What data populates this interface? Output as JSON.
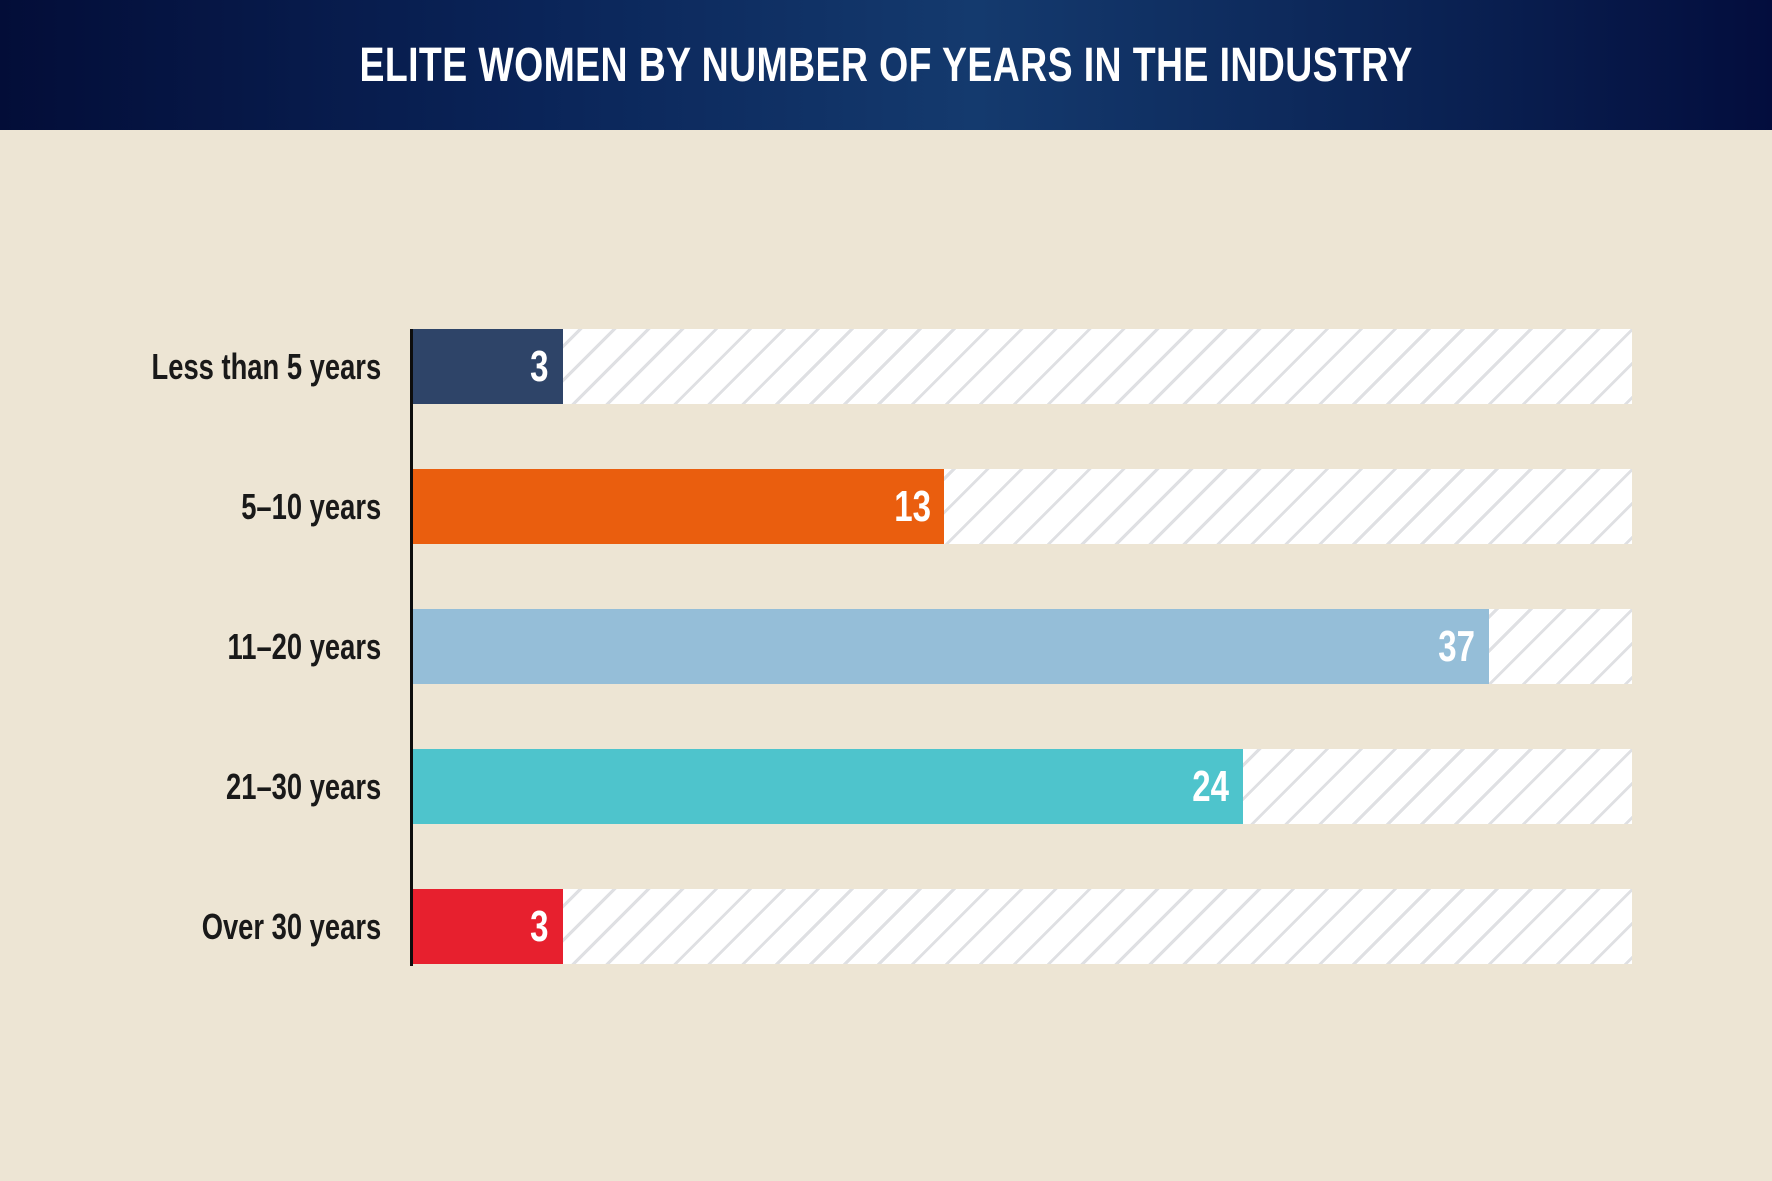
{
  "header": {
    "title": "ELITE WOMEN BY NUMBER OF YEARS IN THE INDUSTRY"
  },
  "chart_data": {
    "type": "bar",
    "orientation": "horizontal",
    "title": "ELITE WOMEN BY NUMBER OF YEARS IN THE INDUSTRY",
    "categories": [
      "Less than 5 years",
      "5–10 years",
      "11–20 years",
      "21–30 years",
      "Over 30 years"
    ],
    "values": [
      3,
      13,
      37,
      24,
      3
    ],
    "series": [
      {
        "name": "Elite women",
        "values": [
          3,
          13,
          37,
          24,
          3
        ]
      }
    ],
    "bar_colors": [
      "#2e4468",
      "#ea5e0e",
      "#95bed8",
      "#4ec4cc",
      "#e7202e"
    ],
    "bar_length_pct_of_track": [
      12.3,
      43.6,
      88.3,
      68.1,
      12.3
    ],
    "value_labels": [
      "3",
      "13",
      "37",
      "24",
      "3"
    ],
    "value_label_color": "#ffffff",
    "xlabel": "",
    "ylabel": "",
    "grid": false,
    "legend": false,
    "track_fill": "#ffffff",
    "hatch_color": "#dfe0e3",
    "axis_color": "#0d0d0d",
    "background_color": "#ede5d4"
  }
}
